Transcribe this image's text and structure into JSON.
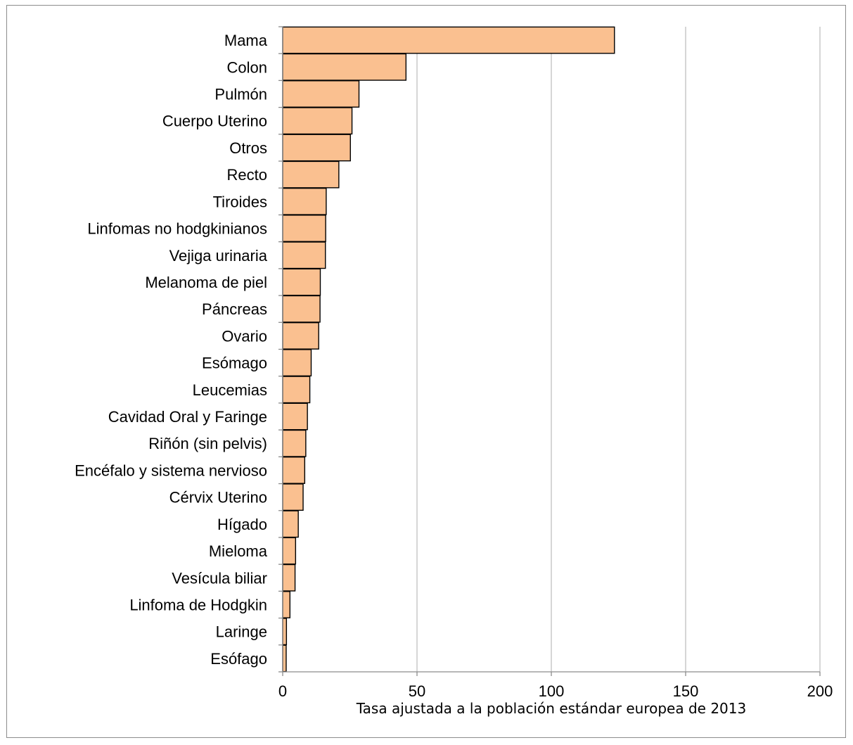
{
  "chart_data": {
    "type": "bar",
    "orientation": "horizontal",
    "categories": [
      "Mama",
      "Colon",
      "Pulmón",
      "Cuerpo Uterino",
      "Otros",
      "Recto",
      "Tiroides",
      "Linfomas no hodgkinianos",
      "Vejiga urinaria",
      "Melanoma de piel",
      "Páncreas",
      "Ovario",
      "Esómago",
      "Leucemias",
      "Cavidad Oral y Faringe",
      "Riñón (sin pelvis)",
      "Encéfalo y sistema nervioso",
      "Cérvix Uterino",
      "Hígado",
      "Mieloma",
      "Vesícula biliar",
      "Linfoma de Hodgkin",
      "Laringe",
      "Esófago"
    ],
    "values": [
      123.5,
      45.9,
      28.4,
      25.8,
      25.2,
      20.9,
      16.2,
      16.0,
      15.9,
      14.0,
      13.9,
      13.4,
      10.6,
      10.1,
      9.2,
      8.6,
      8.2,
      7.6,
      5.8,
      4.8,
      4.6,
      2.7,
      1.4,
      1.3
    ],
    "xlabel": "Tasa ajustada a la población estándar europea de 2013",
    "ylabel": "",
    "title": "",
    "xlim": [
      0,
      200
    ],
    "xticks": [
      0,
      50,
      100,
      150,
      200
    ],
    "grid": "vertical",
    "legend": "none",
    "bar_color": "#FAC090",
    "bar_edge_color": "#000000",
    "grid_color": "#BFBFBF"
  }
}
